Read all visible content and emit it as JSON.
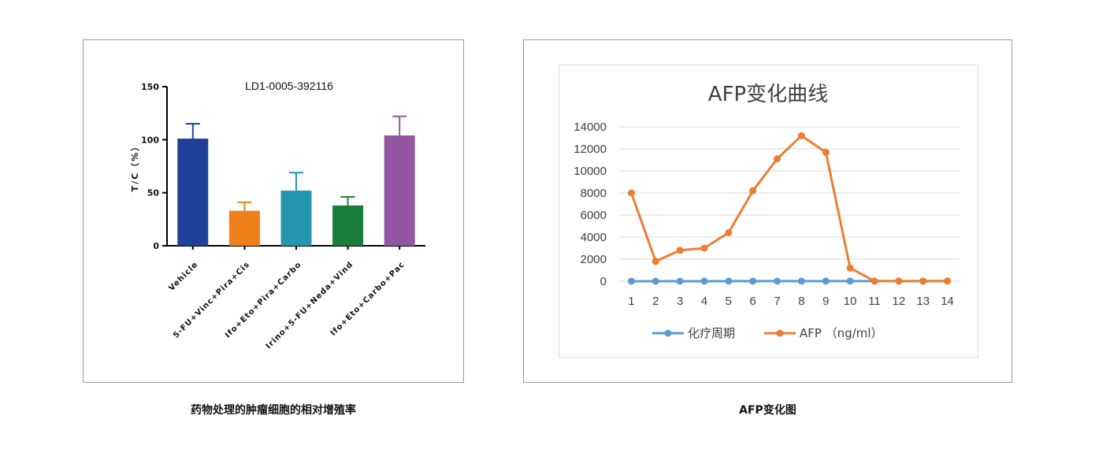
{
  "captions": {
    "left": "药物处理的肿瘤细胞的相对增殖率",
    "right": "AFP变化图"
  },
  "chart_data": [
    {
      "type": "bar",
      "title": "LD1-0005-392116",
      "ylabel": "T/C（%）",
      "ylim": [
        0,
        150
      ],
      "yticks": [
        "0",
        "50",
        "100",
        "150"
      ],
      "categories": [
        "Vehicle",
        "5-FU+Vinc+Pira+Cis",
        "Ifo+Eto+Pira+Carbo",
        "Irino+5-FU+Neda+Vind",
        "Ifo+Eto+Carbo+Pac"
      ],
      "values": [
        101,
        33,
        52,
        38,
        104
      ],
      "error_upper": [
        115,
        41,
        69,
        46,
        122
      ],
      "colors": [
        "#1f3f99",
        "#ef7f1a",
        "#2596b0",
        "#1a7d3a",
        "#9256a3"
      ]
    },
    {
      "type": "line",
      "title": "AFP变化曲线",
      "x": [
        1,
        2,
        3,
        4,
        5,
        6,
        7,
        8,
        9,
        10,
        11,
        12,
        13,
        14
      ],
      "xticks": [
        "1",
        "2",
        "3",
        "4",
        "5",
        "6",
        "7",
        "8",
        "9",
        "10",
        "11",
        "12",
        "13",
        "14"
      ],
      "ylim": [
        0,
        14000
      ],
      "yticks": [
        "0",
        "2000",
        "4000",
        "6000",
        "8000",
        "10000",
        "12000",
        "14000"
      ],
      "grid": true,
      "legend_position": "bottom",
      "series": [
        {
          "name": "化疗周期",
          "color": "#5b9bd5",
          "values": [
            1,
            2,
            3,
            4,
            5,
            6,
            7,
            8,
            9,
            10,
            11,
            12,
            13,
            14
          ]
        },
        {
          "name": "AFP （ng/ml）",
          "color": "#ed7d31",
          "values": [
            8000,
            1800,
            2800,
            3000,
            4400,
            8200,
            11100,
            13200,
            11700,
            1200,
            10,
            10,
            10,
            10
          ]
        }
      ]
    }
  ]
}
